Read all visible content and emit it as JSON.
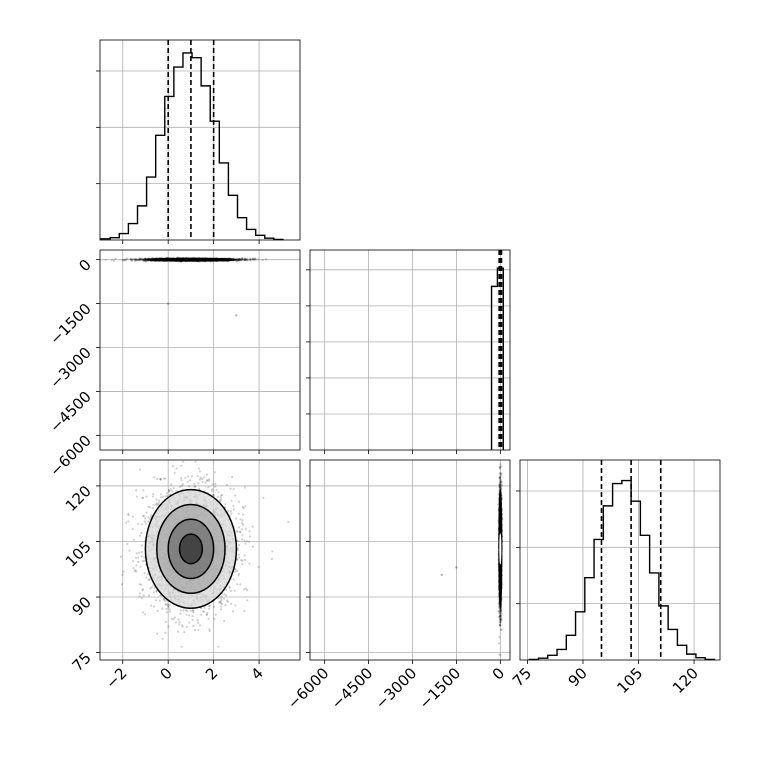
{
  "chart_data": {
    "type": "corner",
    "title": "",
    "parameters": [
      {
        "index": 0,
        "label": "",
        "range": [
          -3,
          5.8
        ],
        "ticks": [
          -2,
          0,
          2,
          4
        ],
        "tick_labels": [
          "−2",
          "0",
          "2",
          "4"
        ]
      },
      {
        "index": 1,
        "label": "",
        "range": [
          -6500,
          330
        ],
        "ticks": [
          -6000,
          -4500,
          -3000,
          -1500,
          0
        ],
        "tick_labels": [
          "−6000",
          "−4500",
          "−3000",
          "−1500",
          "0"
        ]
      },
      {
        "index": 2,
        "label": "",
        "range": [
          73,
          127
        ],
        "ticks": [
          75,
          90,
          105,
          120
        ],
        "tick_labels": [
          "75",
          "90",
          "105",
          "120"
        ]
      }
    ],
    "histograms": [
      {
        "param": 0,
        "bin_edges": [
          -2.95,
          -2.55,
          -2.15,
          -1.75,
          -1.35,
          -0.95,
          -0.55,
          -0.15,
          0.25,
          0.65,
          1.05,
          1.45,
          1.85,
          2.25,
          2.65,
          3.05,
          3.45,
          3.85,
          4.25,
          4.65,
          5.05
        ],
        "counts": [
          2,
          4,
          11,
          28,
          58,
          107,
          178,
          244,
          294,
          318,
          310,
          262,
          202,
          131,
          76,
          38,
          18,
          8,
          3,
          1
        ],
        "quantiles": [
          0.0,
          1.0,
          2.0
        ],
        "ylim": [
          0,
          340
        ]
      },
      {
        "param": 1,
        "bin_edges": [
          -300,
          -100,
          100
        ],
        "counts": [
          0.9,
          1.0
        ],
        "quantiles": [
          -40,
          0,
          40
        ],
        "ylim": [
          0,
          1.1
        ]
      },
      {
        "param": 2,
        "bin_edges": [
          75.5,
          78.0,
          80.5,
          83.0,
          85.5,
          88.0,
          90.5,
          93.0,
          95.5,
          98.0,
          100.5,
          103.0,
          105.5,
          108.0,
          110.5,
          113.0,
          115.5,
          118.0,
          120.5,
          123.0,
          125.5
        ],
        "counts": [
          1,
          3,
          8,
          18,
          42,
          82,
          140,
          205,
          262,
          300,
          305,
          270,
          212,
          148,
          92,
          52,
          25,
          10,
          4,
          1
        ],
        "quantiles": [
          95,
          103,
          111
        ],
        "ylim": [
          0,
          340
        ]
      }
    ],
    "panels_2d": [
      {
        "x_param": 0,
        "y_param": 1,
        "center": [
          1.0,
          0
        ],
        "sigma": [
          1.0,
          20
        ],
        "corr": 0.0,
        "outliers": [
          [
            0.0,
            -1500
          ],
          [
            3.0,
            -1900
          ]
        ]
      },
      {
        "x_param": 0,
        "y_param": 2,
        "center": [
          1.0,
          103
        ],
        "sigma": [
          1.0,
          8
        ],
        "corr": 0.0,
        "outliers": []
      },
      {
        "x_param": 1,
        "y_param": 2,
        "center": [
          0,
          103
        ],
        "sigma": [
          20,
          8
        ],
        "corr": 0.0,
        "outliers": [
          [
            -1500,
            98
          ],
          [
            -2000,
            96
          ]
        ]
      }
    ],
    "contour_levels": [
      0.118,
      0.393,
      0.675,
      0.865
    ],
    "grid": true
  }
}
